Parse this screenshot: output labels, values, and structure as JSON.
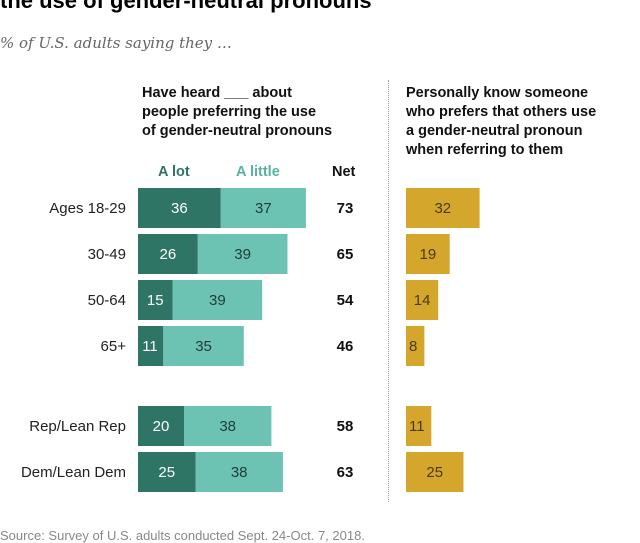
{
  "title": "the use of gender-neutral pronouns",
  "subtitle": "% of U.S. adults saying they …",
  "heard_header": [
    "Have heard ___ about",
    "people preferring the use",
    "of gender-neutral pronouns"
  ],
  "know_header": [
    "Personally know someone",
    "who prefers that others use",
    "a gender-neutral pronoun",
    "when referring to them"
  ],
  "net_header": "Net",
  "source": "Source: Survey of U.S. adults conducted Sept. 24-Oct. 7, 2018.",
  "colors": {
    "a_lot": "#2f7565",
    "a_little": "#6cc3b4",
    "know": "#d4a72c",
    "legend_a_lot": "#2f7565",
    "legend_a_little": "#56b3a2"
  },
  "chart_data": {
    "type": "bar",
    "categories": [
      "Ages 18-29",
      "30-49",
      "50-64",
      "65+",
      "Rep/Lean Rep",
      "Dem/Lean Dem"
    ],
    "groups": [
      [
        "Ages 18-29",
        "30-49",
        "50-64",
        "65+"
      ],
      [
        "Rep/Lean Rep",
        "Dem/Lean Dem"
      ]
    ],
    "series": [
      {
        "name": "A lot",
        "values": [
          36,
          26,
          15,
          11,
          20,
          25
        ]
      },
      {
        "name": "A little",
        "values": [
          37,
          39,
          39,
          35,
          38,
          38
        ]
      },
      {
        "name": "Net",
        "values": [
          73,
          65,
          54,
          46,
          58,
          63
        ]
      },
      {
        "name": "Personally know someone who prefers that others use a gender-neutral pronoun when referring to them",
        "values": [
          32,
          19,
          14,
          8,
          11,
          25
        ]
      }
    ],
    "stacked": [
      "A lot",
      "A little"
    ]
  }
}
